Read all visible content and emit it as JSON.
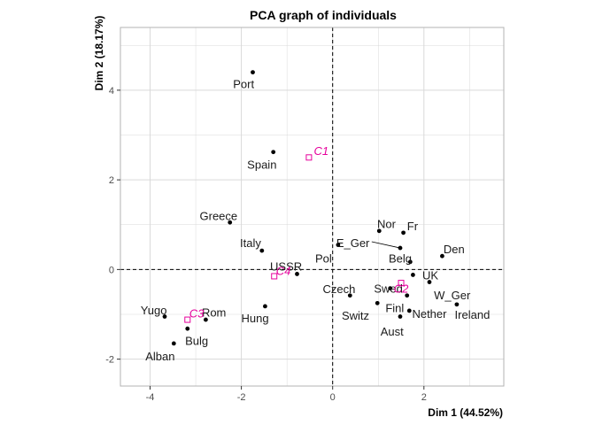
{
  "chart_data": {
    "type": "scatter",
    "title": "PCA graph of individuals",
    "xlabel": "Dim 1 (44.52%)",
    "ylabel": "Dim 2 (18.17%)",
    "xlim": [
      -4.65,
      3.75
    ],
    "ylim": [
      -2.6,
      5.4
    ],
    "xticks": [
      -4,
      -2,
      0,
      2
    ],
    "yticks": [
      -2,
      0,
      2,
      4
    ],
    "grid": true,
    "reference_lines": {
      "x": 0,
      "y": 0,
      "style": "dashed"
    },
    "colors": {
      "points": "#000000",
      "clusters": "#e6009c",
      "grid": "#d9d9d9",
      "panel_border": "#b3b3b3"
    },
    "individuals": [
      {
        "name": "Port",
        "x": -1.75,
        "y": 4.4,
        "lx": -1.95,
        "ly": 4.15
      },
      {
        "name": "Spain",
        "x": -1.3,
        "y": 2.62,
        "lx": -1.55,
        "ly": 2.35
      },
      {
        "name": "Greece",
        "x": -2.25,
        "y": 1.05,
        "lx": -2.5,
        "ly": 1.2
      },
      {
        "name": "Italy",
        "x": -1.55,
        "y": 0.42,
        "lx": -1.8,
        "ly": 0.6
      },
      {
        "name": "USSR",
        "x": -0.78,
        "y": -0.1,
        "lx": -1.02,
        "ly": 0.08
      },
      {
        "name": "Hung",
        "x": -1.48,
        "y": -0.82,
        "lx": -1.7,
        "ly": -1.08
      },
      {
        "name": "Rom",
        "x": -2.78,
        "y": -1.12,
        "lx": -2.6,
        "ly": -0.95
      },
      {
        "name": "Bulg",
        "x": -3.18,
        "y": -1.32,
        "lx": -2.98,
        "ly": -1.58
      },
      {
        "name": "Yugo",
        "x": -3.68,
        "y": -1.05,
        "lx": -3.92,
        "ly": -0.9
      },
      {
        "name": "Alban",
        "x": -3.48,
        "y": -1.65,
        "lx": -3.78,
        "ly": -1.93
      },
      {
        "name": "Pol",
        "x": 0.12,
        "y": 0.55,
        "lx": -0.2,
        "ly": 0.25
      },
      {
        "name": "E_Ger",
        "x": 1.48,
        "y": 0.48,
        "lx": 0.08,
        "ly": 0.6,
        "leader": true
      },
      {
        "name": "Nor",
        "x": 1.02,
        "y": 0.86,
        "lx": 1.18,
        "ly": 1.02
      },
      {
        "name": "Fr",
        "x": 1.55,
        "y": 0.82,
        "lx": 1.75,
        "ly": 0.98
      },
      {
        "name": "Belg",
        "x": 1.7,
        "y": 0.17,
        "lx": 1.48,
        "ly": 0.25
      },
      {
        "name": "Den",
        "x": 2.4,
        "y": 0.3,
        "lx": 2.66,
        "ly": 0.46
      },
      {
        "name": "UK",
        "x": 1.76,
        "y": -0.12,
        "lx": 2.14,
        "ly": -0.12
      },
      {
        "name": "Swed",
        "x": 1.26,
        "y": -0.42,
        "lx": 1.22,
        "ly": -0.42
      },
      {
        "name": "W_Ger",
        "x": 2.12,
        "y": -0.28,
        "lx": 2.62,
        "ly": -0.57
      },
      {
        "name": "Czech",
        "x": 0.38,
        "y": -0.58,
        "lx": 0.14,
        "ly": -0.43
      },
      {
        "name": "Switz",
        "x": 0.98,
        "y": -0.75,
        "lx": 0.5,
        "ly": -1.02
      },
      {
        "name": "Finl",
        "x": 1.63,
        "y": -0.58,
        "lx": 1.36,
        "ly": -0.85
      },
      {
        "name": "Nether",
        "x": 1.68,
        "y": -0.92,
        "lx": 2.12,
        "ly": -0.98
      },
      {
        "name": "Ireland",
        "x": 2.72,
        "y": -0.78,
        "lx": 3.06,
        "ly": -1.0
      },
      {
        "name": "Aust",
        "x": 1.48,
        "y": -1.05,
        "lx": 1.3,
        "ly": -1.38
      }
    ],
    "clusters": [
      {
        "name": "C1",
        "x": -0.52,
        "y": 2.5,
        "lx": -0.25,
        "ly": 2.65
      },
      {
        "name": "C2",
        "x": 1.5,
        "y": -0.3,
        "lx": 1.5,
        "ly": -0.42
      },
      {
        "name": "C3",
        "x": -3.18,
        "y": -1.12,
        "lx": -2.98,
        "ly": -0.97
      },
      {
        "name": "C4",
        "x": -1.28,
        "y": -0.15,
        "lx": -1.08,
        "ly": -0.02
      }
    ]
  }
}
